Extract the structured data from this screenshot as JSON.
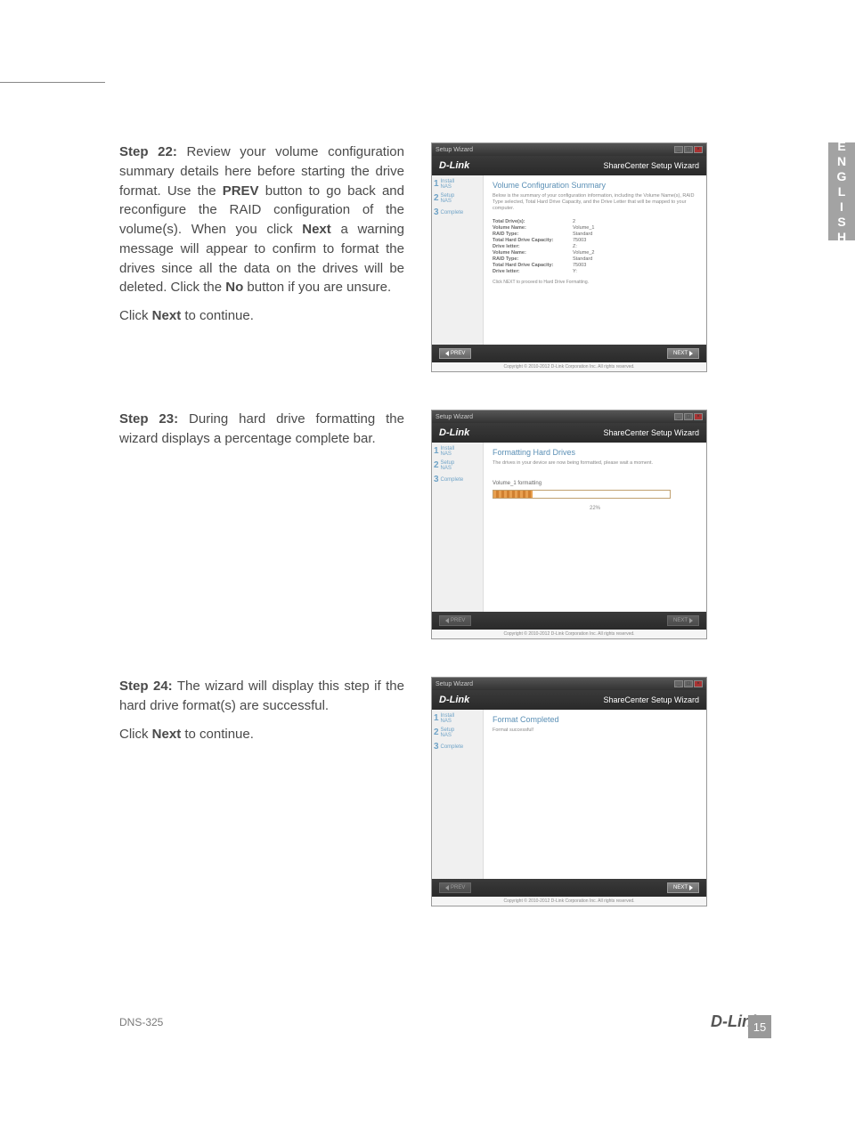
{
  "sideTab": "ENGLISH",
  "steps": {
    "s22": {
      "label": "Step 22:",
      "body1": " Review your volume configuration summary details here before starting the drive format. Use the ",
      "prev": "PREV",
      "body2": " button to go back and reconfigure the RAID configuration of the volume(s). When you click ",
      "next": "Next",
      "body3": " a warning message will appear to confirm to format the drives since all the data on the drives will be deleted. Click the ",
      "no": "No",
      "body4": " button if you are unsure.",
      "click": "Click ",
      "click2": " to continue."
    },
    "s23": {
      "label": "Step 23:",
      "body": " During hard drive formatting the wizard displays a percentage complete bar."
    },
    "s24": {
      "label": "Step 24:",
      "body": " The wizard will display this step if the hard drive format(s) are successful.",
      "click": "Click ",
      "next": "Next",
      "click2": " to continue."
    }
  },
  "wizard": {
    "titlebar": "Setup Wizard",
    "brand": "D-Link",
    "brandRight": "ShareCenter Setup Wizard",
    "sidebar": [
      {
        "num": "1",
        "line1": "Install",
        "line2": "NAS"
      },
      {
        "num": "2",
        "line1": "Setup",
        "line2": "NAS"
      },
      {
        "num": "3",
        "line1": "Complete",
        "line2": ""
      }
    ],
    "prev": "PREV",
    "next": "NEXT",
    "copyright": "Copyright © 2010-2012 D-Link Corporation Inc. All rights reserved."
  },
  "screen22": {
    "title": "Volume Configuration Summary",
    "desc": "Below is the summary of your configuration information, including the Volume Name(s), RAID Type selected, Total Hard Drive Capacity, and the Drive Letter that will be mapped to your computer.",
    "rows": [
      {
        "k": "Total Drive(s):",
        "v": "2"
      },
      {
        "k": "Volume Name:",
        "v": "Volume_1"
      },
      {
        "k": "RAID Type:",
        "v": "Standard"
      },
      {
        "k": "Total Hard Drive Capacity:",
        "v": "75003"
      },
      {
        "k": "Drive letter:",
        "v": "Z:"
      },
      {
        "k": "Volume Name:",
        "v": "Volume_2"
      },
      {
        "k": "RAID Type:",
        "v": "Standard"
      },
      {
        "k": "Total Hard Drive Capacity:",
        "v": "75003"
      },
      {
        "k": "Drive letter:",
        "v": "Y:"
      }
    ],
    "clickNext": "Click NEXT to proceed to Hard Drive Formatting."
  },
  "screen23": {
    "title": "Formatting Hard Drives",
    "desc": "The drives in your device are now being formatted, please wait a moment.",
    "volLabel": "Volume_1 formatting",
    "pct": "22%",
    "pctValue": 22
  },
  "screen24": {
    "title": "Format Completed",
    "desc": "Format successful!"
  },
  "footer": {
    "model": "DNS-325",
    "logo": "D-Link",
    "page": "15"
  },
  "colors": {
    "text": "#4a4a4a",
    "accent": "#5a8fb5",
    "sidebarBg": "#f0f0f0",
    "brandBarBg": "#2a2a2a",
    "sideTabBg": "#a3a3a3",
    "progressA": "#e8a050",
    "progressB": "#d08030"
  }
}
